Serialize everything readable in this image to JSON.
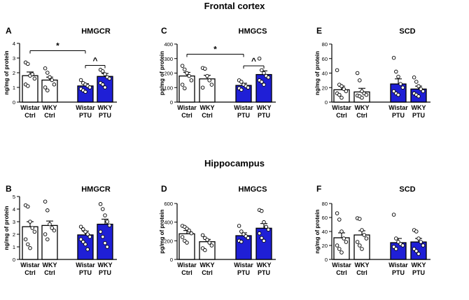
{
  "sections": [
    {
      "title": "Frontal cortex"
    },
    {
      "title": "Hippocampus"
    }
  ],
  "colors": {
    "ptu_fill": "#1f1fd6",
    "ctrl_fill": "#ffffff",
    "stroke": "#000000"
  },
  "chart_data": [
    {
      "panel": "A",
      "type": "bar",
      "title": "HMGCR",
      "ylabel": "ng/mg of protein",
      "ylim": [
        0,
        4
      ],
      "yticks": [
        0,
        1,
        2,
        3,
        4
      ],
      "categories": [
        [
          "Wistar",
          "Ctrl"
        ],
        [
          "WKY",
          "Ctrl"
        ],
        [
          "Wistar",
          "PTU"
        ],
        [
          "WKY",
          "PTU"
        ]
      ],
      "values": [
        1.8,
        1.5,
        1.1,
        1.75
      ],
      "errors": [
        0.25,
        0.2,
        0.15,
        0.2
      ],
      "points": [
        [
          2.7,
          2.6,
          1.8,
          1.9,
          1.6,
          1.2,
          1.1
        ],
        [
          2.3,
          2.0,
          1.7,
          1.5,
          1.2,
          1.0,
          0.8
        ],
        [
          1.5,
          1.3,
          1.2,
          1.1,
          1.0,
          0.9,
          0.8,
          0.7
        ],
        [
          2.2,
          2.1,
          1.9,
          1.7,
          1.6,
          1.3,
          1.2,
          1.0
        ]
      ],
      "annotations": [
        {
          "between": [
            0,
            2
          ],
          "symbol": "*",
          "level": 3.5
        },
        {
          "between": [
            2,
            3
          ],
          "symbol": "^",
          "level": 2.5
        }
      ]
    },
    {
      "panel": "C",
      "type": "bar",
      "title": "HMGCS",
      "ylabel": "pg/mg of protein",
      "ylim": [
        0,
        400
      ],
      "yticks": [
        0,
        100,
        200,
        300,
        400
      ],
      "categories": [
        [
          "Wistar",
          "Ctrl"
        ],
        [
          "WKY",
          "Ctrl"
        ],
        [
          "Wistar",
          "PTU"
        ],
        [
          "WKY",
          "PTU"
        ]
      ],
      "values": [
        180,
        160,
        115,
        190
      ],
      "errors": [
        25,
        25,
        15,
        25
      ],
      "points": [
        [
          250,
          225,
          200,
          180,
          150,
          120,
          95
        ],
        [
          235,
          230,
          180,
          150,
          120,
          100
        ],
        [
          150,
          140,
          120,
          110,
          100,
          95,
          85
        ],
        [
          300,
          220,
          200,
          180,
          170,
          150,
          140,
          120
        ]
      ],
      "annotations": [
        {
          "between": [
            0,
            2
          ],
          "symbol": "*",
          "level": 330
        },
        {
          "between": [
            2,
            3
          ],
          "symbol": "^",
          "level": 250
        }
      ]
    },
    {
      "panel": "E",
      "type": "bar",
      "title": "SCD",
      "ylabel": "ng/mg of protein",
      "ylim": [
        0,
        80
      ],
      "yticks": [
        0,
        20,
        40,
        60,
        80
      ],
      "categories": [
        [
          "Wistar",
          "Ctrl"
        ],
        [
          "WKY",
          "Ctrl"
        ],
        [
          "Wistar",
          "PTU"
        ],
        [
          "WKY",
          "PTU"
        ]
      ],
      "values": [
        17,
        14,
        25,
        18
      ],
      "errors": [
        5,
        5,
        7,
        4
      ],
      "points": [
        [
          44,
          24,
          22,
          18,
          15,
          12,
          10,
          6
        ],
        [
          40,
          30,
          15,
          12,
          10,
          9,
          8,
          6
        ],
        [
          61,
          42,
          35,
          25,
          20,
          15,
          12,
          10
        ],
        [
          34,
          28,
          22,
          18,
          15,
          12,
          10,
          8
        ]
      ],
      "annotations": []
    },
    {
      "panel": "B",
      "type": "bar",
      "title": "HMGCR",
      "ylabel": "ng/mg of protein",
      "ylim": [
        0,
        5
      ],
      "yticks": [
        0,
        1,
        2,
        3,
        4,
        5
      ],
      "categories": [
        [
          "Wistar",
          "Ctrl"
        ],
        [
          "WKY",
          "Ctrl"
        ],
        [
          "Wistar",
          "PTU"
        ],
        [
          "WKY",
          "PTU"
        ]
      ],
      "values": [
        2.6,
        2.7,
        1.95,
        2.8
      ],
      "errors": [
        0.4,
        0.35,
        0.3,
        0.4
      ],
      "points": [
        [
          4.3,
          4.2,
          3.0,
          2.5,
          2.2,
          1.6,
          1.2,
          0.9
        ],
        [
          4.6,
          3.9,
          2.8,
          2.5,
          2.3,
          2.0,
          1.6
        ],
        [
          2.6,
          2.4,
          2.2,
          2.0,
          1.8,
          1.6,
          1.4,
          1.2,
          0.8
        ],
        [
          4.4,
          4.0,
          3.5,
          3.0,
          2.7,
          2.2,
          1.8,
          1.3,
          1.0
        ]
      ],
      "annotations": []
    },
    {
      "panel": "D",
      "type": "bar",
      "title": "HMGCS",
      "ylabel": "pg/mg of protein",
      "ylim": [
        0,
        600
      ],
      "yticks": [
        0,
        200,
        400,
        600
      ],
      "categories": [
        [
          "Wistar",
          "Ctrl"
        ],
        [
          "WKY",
          "Ctrl"
        ],
        [
          "Wistar",
          "PTU"
        ],
        [
          "WKY",
          "PTU"
        ]
      ],
      "values": [
        275,
        190,
        255,
        335
      ],
      "errors": [
        35,
        25,
        30,
        50
      ],
      "points": [
        [
          360,
          350,
          330,
          310,
          280,
          240,
          200,
          180
        ],
        [
          260,
          230,
          210,
          180,
          150,
          120,
          100
        ],
        [
          360,
          300,
          270,
          250,
          230,
          200,
          190
        ],
        [
          530,
          520,
          400,
          350,
          320,
          280,
          230,
          200
        ]
      ],
      "annotations": []
    },
    {
      "panel": "F",
      "type": "bar",
      "title": "SCD",
      "ylabel": "ng/mg of protein",
      "ylim": [
        0,
        80
      ],
      "yticks": [
        0,
        20,
        40,
        60,
        80
      ],
      "categories": [
        [
          "Wistar",
          "Ctrl"
        ],
        [
          "WKY",
          "Ctrl"
        ],
        [
          "Wistar",
          "PTU"
        ],
        [
          "WKY",
          "PTU"
        ]
      ],
      "values": [
        31,
        35,
        24,
        25
      ],
      "errors": [
        7,
        6,
        6,
        5
      ],
      "points": [
        [
          66,
          57,
          40,
          30,
          25,
          20,
          15,
          10
        ],
        [
          59,
          58,
          42,
          35,
          30,
          25,
          20,
          15
        ],
        [
          64,
          30,
          25,
          22,
          20,
          18,
          15
        ],
        [
          42,
          40,
          30,
          25,
          20,
          15,
          12,
          8
        ]
      ],
      "annotations": []
    }
  ]
}
